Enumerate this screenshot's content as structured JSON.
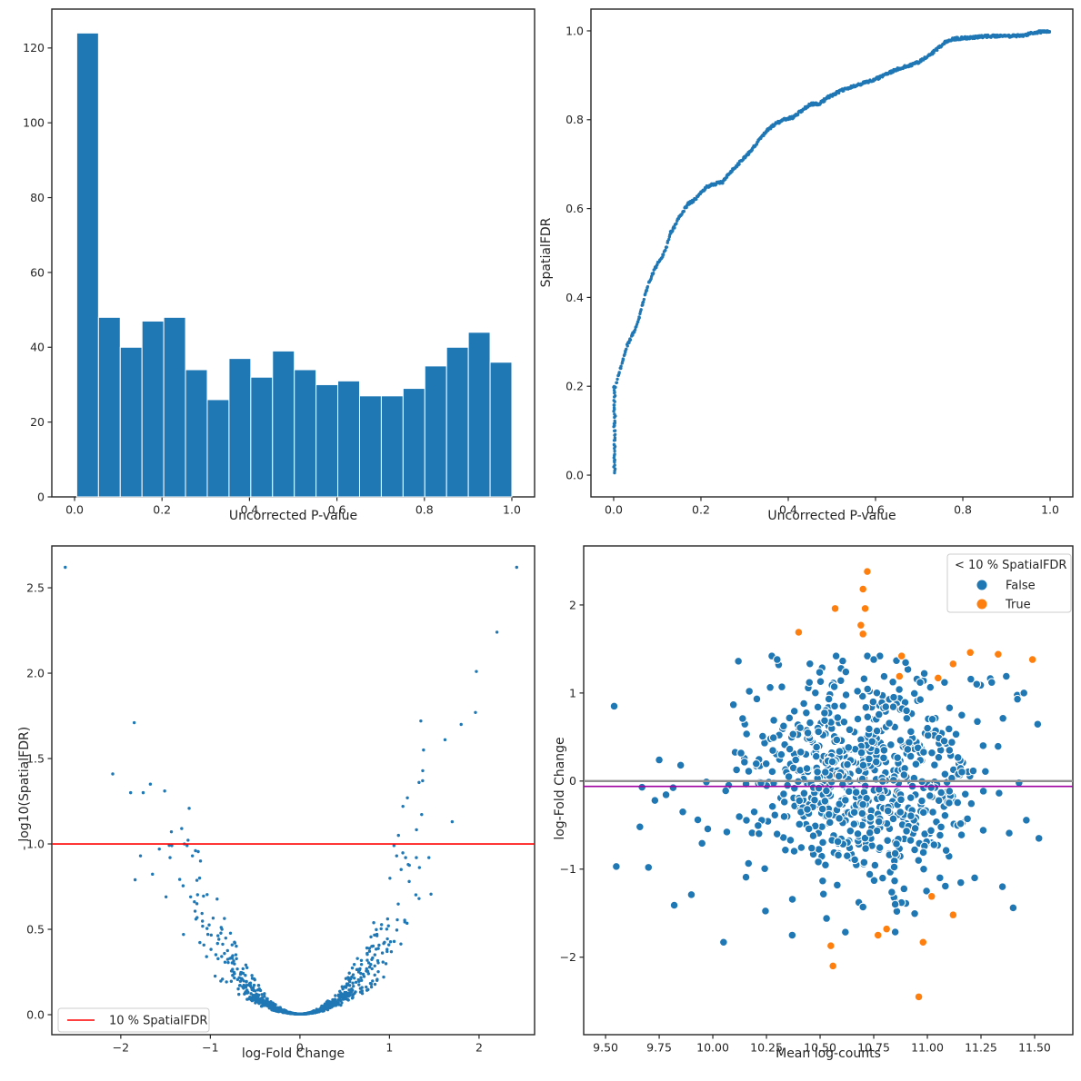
{
  "figure": {
    "background": "#ffffff"
  },
  "colors": {
    "blue": "#1f77b4",
    "orange": "#ff7f0e",
    "red": "#ff0000",
    "gray_line": "#8f8f8f",
    "purple_line": "#a000a0",
    "axis": "#262626",
    "legend_border": "#cccccc"
  },
  "chart_data": [
    {
      "id": "pvalue-histogram",
      "type": "bar",
      "xlabel": "Uncorrected P-value",
      "ylabel": "",
      "bin_start": 0.005,
      "bin_end": 1.0,
      "values": [
        124,
        48,
        40,
        47,
        48,
        34,
        26,
        37,
        32,
        39,
        34,
        30,
        31,
        27,
        27,
        29,
        35,
        40,
        44,
        36
      ],
      "xlim": [
        -0.052,
        1.052
      ],
      "ylim": [
        0,
        130.4
      ],
      "xticks": [
        {
          "v": 0.0,
          "label": "0.0"
        },
        {
          "v": 0.2,
          "label": "0.2"
        },
        {
          "v": 0.4,
          "label": "0.4"
        },
        {
          "v": 0.6,
          "label": "0.6"
        },
        {
          "v": 0.8,
          "label": "0.8"
        },
        {
          "v": 1.0,
          "label": "1.0"
        }
      ],
      "yticks": [
        {
          "v": 0,
          "label": "0"
        },
        {
          "v": 20,
          "label": "20"
        },
        {
          "v": 40,
          "label": "40"
        },
        {
          "v": 60,
          "label": "60"
        },
        {
          "v": 80,
          "label": "80"
        },
        {
          "v": 100,
          "label": "100"
        },
        {
          "v": 120,
          "label": "120"
        }
      ]
    },
    {
      "id": "spatialfdr-vs-pvalue",
      "type": "scatter",
      "xlabel": "Uncorrected P-value",
      "ylabel": "SpatialFDR",
      "xlim": [
        -0.052,
        1.052
      ],
      "ylim": [
        -0.049,
        1.049
      ],
      "xticks": [
        {
          "v": 0.0,
          "label": "0.0"
        },
        {
          "v": 0.2,
          "label": "0.2"
        },
        {
          "v": 0.4,
          "label": "0.4"
        },
        {
          "v": 0.6,
          "label": "0.6"
        },
        {
          "v": 0.8,
          "label": "0.8"
        },
        {
          "v": 1.0,
          "label": "1.0"
        }
      ],
      "yticks": [
        {
          "v": 0.0,
          "label": "0.0"
        },
        {
          "v": 0.2,
          "label": "0.2"
        },
        {
          "v": 0.4,
          "label": "0.4"
        },
        {
          "v": 0.6,
          "label": "0.6"
        },
        {
          "v": 0.8,
          "label": "0.8"
        },
        {
          "v": 1.0,
          "label": "1.0"
        }
      ],
      "n_points": 780,
      "seed": 11,
      "zero_stack": {
        "n": 45,
        "x_max": 0.004,
        "y_min": 0.005,
        "y_max": 0.2
      },
      "curve_x": [
        0.0,
        0.004,
        0.01,
        0.02,
        0.03,
        0.04,
        0.05,
        0.06,
        0.07,
        0.08,
        0.09,
        0.1,
        0.11,
        0.12,
        0.13,
        0.14,
        0.15,
        0.16,
        0.17,
        0.185,
        0.2,
        0.215,
        0.23,
        0.25,
        0.27,
        0.29,
        0.31,
        0.33,
        0.35,
        0.37,
        0.39,
        0.41,
        0.43,
        0.45,
        0.47,
        0.49,
        0.52,
        0.55,
        0.58,
        0.61,
        0.64,
        0.67,
        0.7,
        0.73,
        0.76,
        0.78,
        0.82,
        0.86,
        0.9,
        0.94,
        0.97,
        1.0
      ],
      "curve_y": [
        0.005,
        0.2,
        0.22,
        0.255,
        0.29,
        0.31,
        0.33,
        0.36,
        0.4,
        0.43,
        0.455,
        0.475,
        0.49,
        0.51,
        0.545,
        0.56,
        0.58,
        0.595,
        0.61,
        0.62,
        0.635,
        0.65,
        0.655,
        0.66,
        0.685,
        0.705,
        0.725,
        0.75,
        0.775,
        0.79,
        0.8,
        0.805,
        0.82,
        0.835,
        0.835,
        0.85,
        0.865,
        0.875,
        0.885,
        0.895,
        0.91,
        0.92,
        0.93,
        0.95,
        0.975,
        0.982,
        0.985,
        0.988,
        0.988,
        0.99,
        0.997,
        1.0
      ]
    },
    {
      "id": "volcano",
      "type": "scatter",
      "xlabel": "log-Fold Change",
      "ylabel": "- log10(SpatialFDR)",
      "xlim": [
        -2.77,
        2.62
      ],
      "ylim": [
        -0.117,
        2.745
      ],
      "xticks": [
        {
          "v": -2,
          "label": "−2"
        },
        {
          "v": -1,
          "label": "−1"
        },
        {
          "v": 0,
          "label": "0"
        },
        {
          "v": 1,
          "label": "1"
        },
        {
          "v": 2,
          "label": "2"
        }
      ],
      "yticks": [
        {
          "v": 0.0,
          "label": "0.0"
        },
        {
          "v": 0.5,
          "label": "0.5"
        },
        {
          "v": 1.0,
          "label": "1.0"
        },
        {
          "v": 1.5,
          "label": "1.5"
        },
        {
          "v": 2.0,
          "label": "2.0"
        },
        {
          "v": 2.5,
          "label": "2.5"
        }
      ],
      "threshold_line": {
        "y": 1.0,
        "color_key": "red"
      },
      "legend": {
        "label": "10 % SpatialFDR"
      },
      "bulk": {
        "n": 850,
        "seed": 42,
        "x_sd": 0.52,
        "y_coef": 0.45,
        "noise_sd": 0.3,
        "noise_min": 0.55,
        "noise_max": 1.75,
        "y_floor": 0.004,
        "y_max": 2.65,
        "x_clamp": 2.15
      },
      "outliers": [
        [
          -2.62,
          2.62
        ],
        [
          2.42,
          2.62
        ],
        [
          2.2,
          2.24
        ],
        [
          1.97,
          2.01
        ],
        [
          1.96,
          1.77
        ],
        [
          -1.85,
          1.71
        ],
        [
          1.35,
          1.72
        ],
        [
          1.8,
          1.7
        ],
        [
          1.62,
          1.61
        ],
        [
          1.38,
          1.55
        ],
        [
          -2.09,
          1.41
        ],
        [
          -1.89,
          1.3
        ],
        [
          -1.75,
          1.3
        ],
        [
          -1.67,
          1.35
        ],
        [
          -1.51,
          1.31
        ],
        [
          1.33,
          1.36
        ],
        [
          1.37,
          1.37
        ],
        [
          1.2,
          1.27
        ],
        [
          1.15,
          1.22
        ],
        [
          1.7,
          1.13
        ],
        [
          -1.32,
          1.09
        ],
        [
          1.1,
          1.05
        ],
        [
          -1.43,
          0.99
        ],
        [
          -1.29,
          1.0
        ],
        [
          -1.26,
          0.99
        ],
        [
          -1.57,
          0.97
        ],
        [
          -1.78,
          0.93
        ],
        [
          -1.45,
          0.92
        ],
        [
          -1.2,
          0.93
        ],
        [
          -1.11,
          0.9
        ],
        [
          -1.84,
          0.79
        ],
        [
          -1.12,
          0.8
        ],
        [
          1.05,
          0.99
        ],
        [
          1.08,
          0.93
        ],
        [
          1.18,
          0.92
        ],
        [
          1.3,
          0.92
        ],
        [
          1.44,
          0.92
        ],
        [
          1.13,
          0.85
        ],
        [
          1.22,
          0.78
        ],
        [
          1.33,
          0.68
        ],
        [
          -1.22,
          0.69
        ],
        [
          -1.15,
          0.65
        ],
        [
          -1.3,
          0.47
        ]
      ]
    },
    {
      "id": "ma-plot",
      "type": "scatter",
      "xlabel": "Mean log-counts",
      "ylabel": "log-Fold Change",
      "xlim": [
        9.398,
        11.678
      ],
      "ylim": [
        -2.88,
        2.67
      ],
      "xticks": [
        {
          "v": 9.5,
          "label": "9.50"
        },
        {
          "v": 9.75,
          "label": "9.75"
        },
        {
          "v": 10.0,
          "label": "10.00"
        },
        {
          "v": 10.25,
          "label": "10.25"
        },
        {
          "v": 10.5,
          "label": "10.50"
        },
        {
          "v": 10.75,
          "label": "10.75"
        },
        {
          "v": 11.0,
          "label": "11.00"
        },
        {
          "v": 11.25,
          "label": "11.25"
        },
        {
          "v": 11.5,
          "label": "11.50"
        }
      ],
      "yticks": [
        {
          "v": -2,
          "label": "−2"
        },
        {
          "v": -1,
          "label": "−1"
        },
        {
          "v": 0,
          "label": "0"
        },
        {
          "v": 1,
          "label": "1"
        },
        {
          "v": 2,
          "label": "2"
        }
      ],
      "zero_line": {
        "y": 0.0,
        "color_key": "gray_line"
      },
      "mean_line": {
        "y": -0.06,
        "color_key": "purple_line"
      },
      "legend": {
        "title": "< 10 % SpatialFDR",
        "items": [
          {
            "label": "False",
            "color_key": "blue"
          },
          {
            "label": "True",
            "color_key": "orange"
          }
        ]
      },
      "bulk": {
        "n": 760,
        "seed": 7,
        "x_mean": 10.7,
        "x_sd": 0.27,
        "y_mean": 0.0,
        "y_sd": 0.55,
        "x_min": 9.45,
        "x_max": 11.55,
        "y_min": -1.9,
        "y_max": 1.42
      },
      "false_extra": [
        [
          9.54,
          0.85
        ],
        [
          9.55,
          -0.97
        ],
        [
          9.67,
          -0.07
        ],
        [
          9.66,
          -0.52
        ],
        [
          9.7,
          -0.98
        ],
        [
          9.73,
          -0.22
        ],
        [
          9.75,
          0.24
        ],
        [
          9.85,
          0.18
        ],
        [
          9.82,
          -1.41
        ],
        [
          9.9,
          -1.29
        ],
        [
          9.86,
          -0.35
        ],
        [
          9.93,
          -0.44
        ],
        [
          9.97,
          -0.01
        ],
        [
          10.05,
          -1.83
        ],
        [
          10.06,
          -0.11
        ],
        [
          10.17,
          1.02
        ],
        [
          10.3,
          1.38
        ],
        [
          10.37,
          -1.75
        ],
        [
          10.75,
          1.38
        ],
        [
          10.62,
          1.24
        ],
        [
          10.45,
          1.12
        ],
        [
          11.08,
          1.12
        ],
        [
          11.23,
          1.1
        ],
        [
          11.3,
          1.12
        ],
        [
          11.35,
          -1.2
        ],
        [
          11.4,
          -1.44
        ],
        [
          11.52,
          -0.65
        ],
        [
          11.45,
          1.0
        ],
        [
          11.42,
          0.93
        ],
        [
          10.53,
          -1.56
        ],
        [
          10.7,
          -1.43
        ],
        [
          10.85,
          -1.4
        ]
      ],
      "true_points": [
        [
          10.72,
          2.38
        ],
        [
          10.7,
          2.18
        ],
        [
          10.57,
          1.96
        ],
        [
          10.71,
          1.96
        ],
        [
          10.69,
          1.77
        ],
        [
          10.7,
          1.67
        ],
        [
          10.4,
          1.69
        ],
        [
          10.88,
          1.42
        ],
        [
          11.2,
          1.46
        ],
        [
          11.33,
          1.44
        ],
        [
          11.49,
          1.38
        ],
        [
          11.12,
          1.33
        ],
        [
          10.87,
          1.19
        ],
        [
          11.05,
          1.17
        ],
        [
          10.55,
          -1.87
        ],
        [
          10.56,
          -2.1
        ],
        [
          10.96,
          -2.45
        ],
        [
          10.98,
          -1.83
        ],
        [
          10.81,
          -1.68
        ],
        [
          10.77,
          -1.75
        ],
        [
          11.02,
          -1.31
        ],
        [
          11.12,
          -1.52
        ]
      ]
    }
  ]
}
